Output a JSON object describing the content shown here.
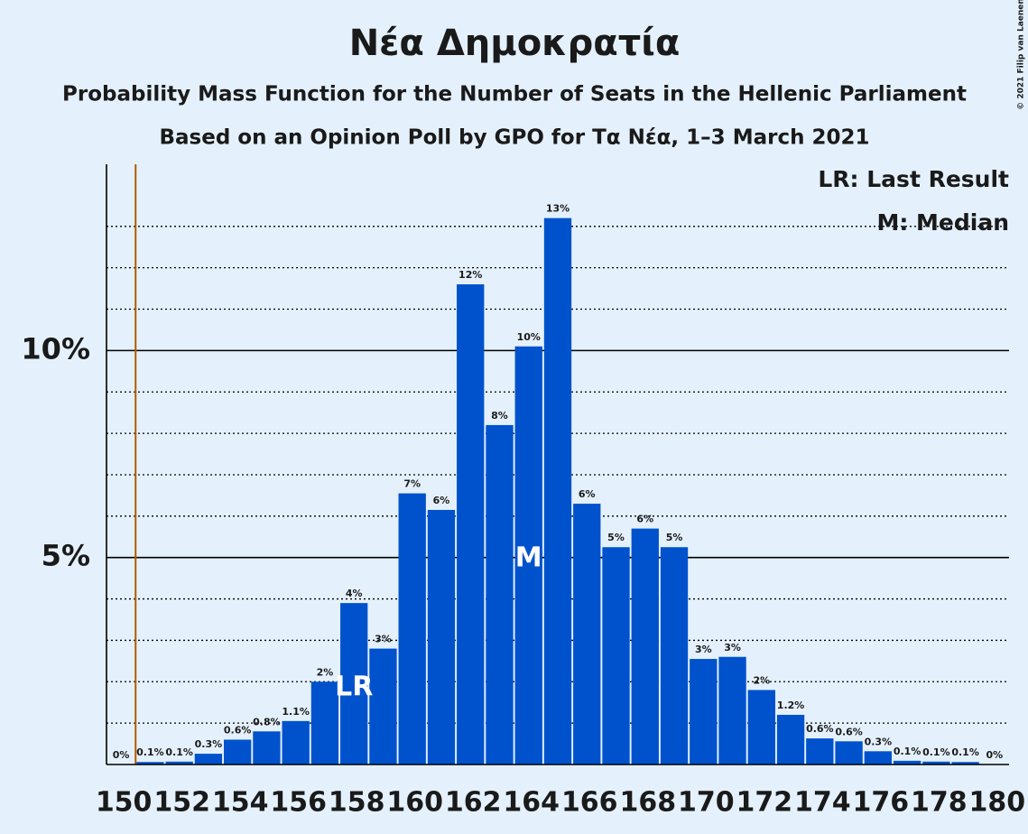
{
  "chart_data": {
    "type": "bar",
    "title": "Νέα Δημοκρατία",
    "subtitle": "Probability Mass Function for the Number of Seats in the Hellenic Parliament",
    "subtitle2": "Based on an Opinion Poll by GPO for Τα Νέα, 1–3 March 2021",
    "copyright": "© 2021 Filip van Laenen",
    "legend": [
      "LR: Last Result",
      "M: Median"
    ],
    "last_result": 151,
    "last_result_marker": "LR",
    "median": 164,
    "median_marker": "M",
    "categories": [
      150,
      null,
      152,
      null,
      154,
      null,
      156,
      null,
      158,
      null,
      160,
      null,
      162,
      null,
      164,
      null,
      166,
      null,
      168,
      null,
      170,
      null,
      172,
      null,
      174,
      null,
      176,
      null,
      178,
      null,
      180
    ],
    "values": [
      0,
      0.06,
      0.07,
      0.26,
      0.6,
      0.8,
      1.05,
      2.0,
      3.9,
      2.8,
      6.55,
      6.15,
      11.6,
      8.2,
      10.1,
      13.2,
      6.3,
      5.25,
      5.7,
      5.25,
      2.55,
      2.6,
      1.8,
      1.2,
      0.63,
      0.56,
      0.32,
      0.09,
      0.07,
      0.06,
      0
    ],
    "value_labels": [
      "0%",
      "0.1%",
      "0.1%",
      "0.3%",
      "0.6%",
      "0.8%",
      "1.1%",
      "2%",
      "4%",
      "3%",
      "7%",
      "6%",
      "12%",
      "8%",
      "10%",
      "13%",
      "6%",
      "5%",
      "6%",
      "5%",
      "3%",
      "3%",
      "2%",
      "1.2%",
      "0.6%",
      "0.6%",
      "0.3%",
      "0.1%",
      "0.1%",
      "0.1%",
      "0%"
    ],
    "color": "#0052cc",
    "last_result_color": "#b35900",
    "ylim": [
      0,
      14.5
    ],
    "yticks": [
      {
        "value": 5,
        "label": "5%"
      },
      {
        "value": 10,
        "label": "10%"
      }
    ],
    "minor_yticks": [
      1,
      2,
      3,
      4,
      6,
      7,
      8,
      9,
      11,
      12,
      13
    ],
    "grid": true
  }
}
